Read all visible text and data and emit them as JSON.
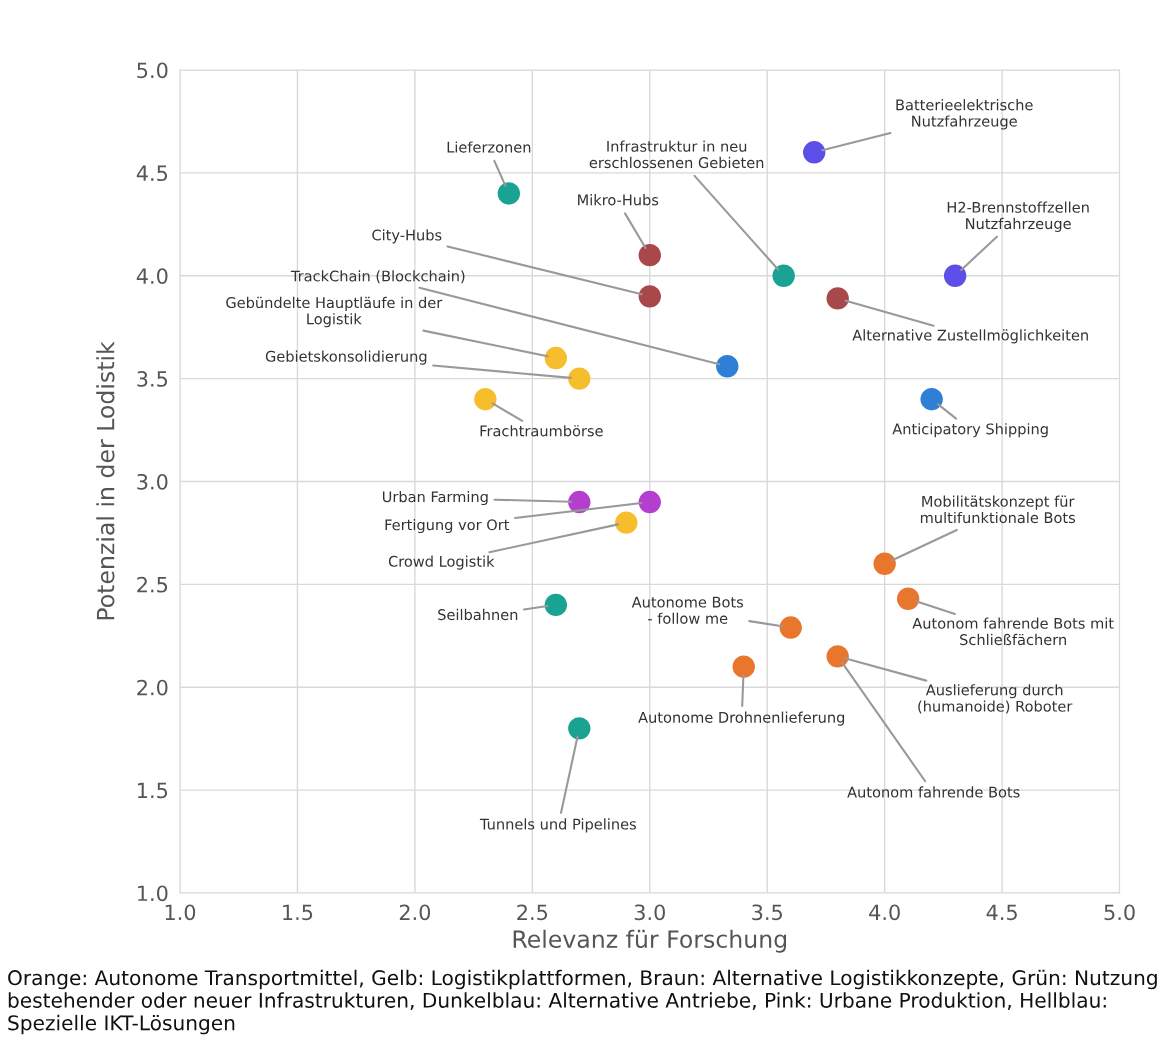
{
  "chart_data": {
    "type": "scatter",
    "xlabel": "Relevanz für Forschung",
    "ylabel": "Potenzial in der Lodistik",
    "marker": "circle",
    "grid": true,
    "legend": false,
    "xlim": [
      1,
      5
    ],
    "ylim": [
      1,
      5
    ],
    "xticks": [
      {
        "value": 1,
        "label": "1.0"
      },
      {
        "value": 1.5,
        "label": "1.5"
      },
      {
        "value": 2,
        "label": "2.0"
      },
      {
        "value": 2.5,
        "label": "2.5"
      },
      {
        "value": 3,
        "label": "3.0"
      },
      {
        "value": 3.5,
        "label": "3.5"
      },
      {
        "value": 4,
        "label": "4.0"
      },
      {
        "value": 4.5,
        "label": "4.5"
      },
      {
        "value": 5,
        "label": "5.0"
      }
    ],
    "yticks": [
      {
        "value": 1,
        "label": "1.0"
      },
      {
        "value": 1.5,
        "label": "1.5"
      },
      {
        "value": 2,
        "label": "2.0"
      },
      {
        "value": 2.5,
        "label": "2.5"
      },
      {
        "value": 3,
        "label": "3.0"
      },
      {
        "value": 3.5,
        "label": "3.5"
      },
      {
        "value": 4,
        "label": "4.0"
      },
      {
        "value": 4.5,
        "label": "4.5"
      },
      {
        "value": 5,
        "label": "5.0"
      }
    ],
    "series": [
      {
        "color": "#e8762c",
        "x": [
          4.0,
          4.1,
          3.6,
          3.4,
          3.8
        ],
        "values": [
          2.6,
          2.43,
          2.29,
          2.1,
          2.15
        ]
      },
      {
        "color": "#f6be2c",
        "x": [
          2.6,
          2.7,
          2.3,
          2.9
        ],
        "values": [
          3.6,
          3.5,
          3.4,
          2.8
        ]
      },
      {
        "color": "#a8484a",
        "x": [
          3.0,
          3.0,
          3.8
        ],
        "values": [
          4.1,
          3.9,
          3.89
        ]
      },
      {
        "color": "#1aa393",
        "x": [
          2.4,
          3.57,
          2.6,
          2.7
        ],
        "values": [
          4.4,
          4.0,
          2.4,
          1.8
        ]
      },
      {
        "color": "#5b4fe8",
        "x": [
          3.7,
          4.3
        ],
        "values": [
          4.6,
          4.0
        ]
      },
      {
        "color": "#b43fcf",
        "x": [
          2.7,
          3.0
        ],
        "values": [
          2.9,
          2.9
        ]
      },
      {
        "color": "#2f7fd6",
        "x": [
          3.33,
          4.2
        ],
        "values": [
          3.56,
          3.4
        ]
      }
    ],
    "annotations": [
      {
        "text": "Lieferzonen",
        "x": 2.4,
        "y": 4.4
      },
      {
        "text": "Mikro-Hubs",
        "x": 3.0,
        "y": 4.1
      },
      {
        "text": "City-Hubs",
        "x": 3.0,
        "y": 3.9
      },
      {
        "text": "Infrastruktur in neu\nerschlossenen Gebieten",
        "x": 3.57,
        "y": 4.0
      },
      {
        "text": "Batterieelektrische\nNutzfahrzeuge",
        "x": 3.7,
        "y": 4.6
      },
      {
        "text": "H2-Brennstoffzellen\nNutzfahrzeuge",
        "x": 4.3,
        "y": 4.0
      },
      {
        "text": "Alternative Zustellmöglichkeiten",
        "x": 3.8,
        "y": 3.89
      },
      {
        "text": "TrackChain (Blockchain)",
        "x": 3.33,
        "y": 3.56
      },
      {
        "text": "Gebündelte Hauptläufe in der\nLogistik",
        "x": 2.6,
        "y": 3.6
      },
      {
        "text": "Gebietskonsolidierung",
        "x": 2.7,
        "y": 3.5
      },
      {
        "text": "Frachtraumbörse",
        "x": 2.3,
        "y": 3.4
      },
      {
        "text": "Anticipatory Shipping",
        "x": 4.2,
        "y": 3.4
      },
      {
        "text": "Urban Farming",
        "x": 2.7,
        "y": 2.9
      },
      {
        "text": "Fertigung vor Ort",
        "x": 3.0,
        "y": 2.9
      },
      {
        "text": "Crowd Logistik",
        "x": 2.9,
        "y": 2.8
      },
      {
        "text": "Mobilitätskonzept für\nmultifunktionale Bots",
        "x": 4.0,
        "y": 2.6
      },
      {
        "text": "Seilbahnen",
        "x": 2.6,
        "y": 2.4
      },
      {
        "text": "Autonom fahrende Bots mit\nSchließfächern",
        "x": 4.1,
        "y": 2.43
      },
      {
        "text": "Autonome Bots\n- follow me",
        "x": 3.6,
        "y": 2.29
      },
      {
        "text": "Autonome Drohnenlieferung",
        "x": 3.4,
        "y": 2.1
      },
      {
        "text": "Auslieferung durch\n(humanoide) Roboter",
        "x": 3.8,
        "y": 2.15
      },
      {
        "text": "Autonom fahrende Bots",
        "x": 3.8,
        "y": 2.15
      },
      {
        "text": "Tunnels und Pipelines",
        "x": 2.7,
        "y": 1.8
      },
      "Orange: Autonome Transportmittel, Gelb: Logistikplattformen, Braun: Alternative Logistikkonzepte, Grün: Nutzung bestehender oder neuer Infrastrukturen, Dunkelblau: Alternative Antriebe, Pink: Urbane Produktion, Hellblau: Spezielle IKT-Lösungen"
    ]
  }
}
